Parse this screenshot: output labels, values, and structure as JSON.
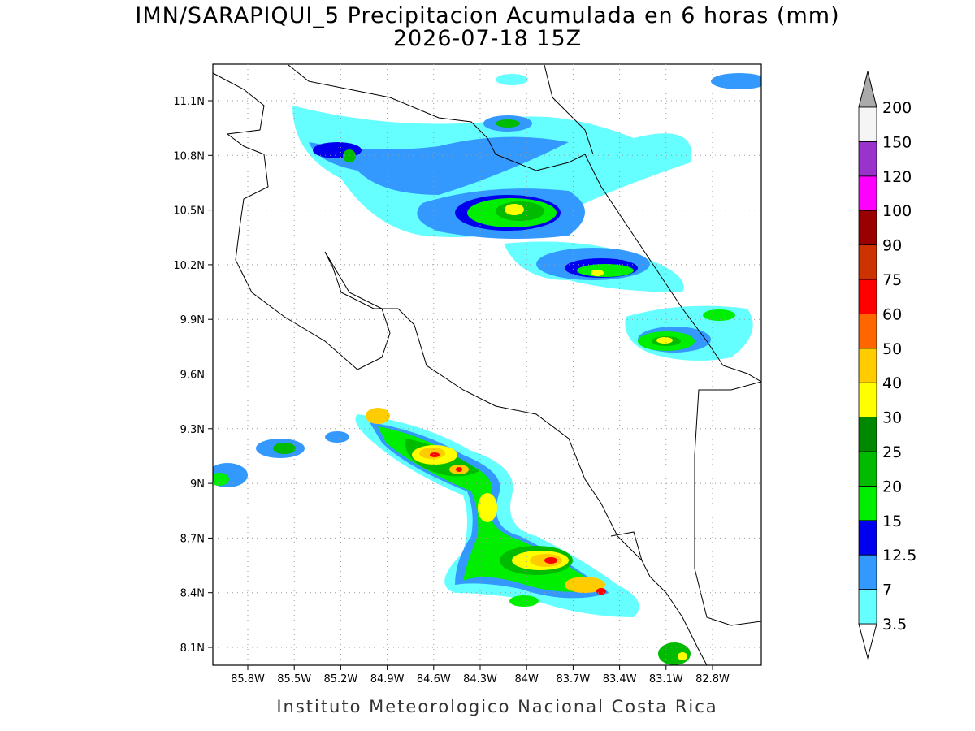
{
  "title": "IMN/SARAPIQUI_5 Precipitacion Acumulada en 6 horas (mm)",
  "subtitle": "2026-07-18 15Z",
  "footer": "Instituto Meteorologico Nacional Costa Rica",
  "x_ticks": [
    "85.8W",
    "85.5W",
    "85.2W",
    "84.9W",
    "84.6W",
    "84.3W",
    "84W",
    "83.7W",
    "83.4W",
    "83.1W",
    "82.8W"
  ],
  "y_ticks": [
    "11.1N",
    "10.8N",
    "10.5N",
    "10.2N",
    "9.9N",
    "9.6N",
    "9.3N",
    "9N",
    "8.7N",
    "8.4N",
    "8.1N"
  ],
  "colorbar": {
    "levels": [
      3.5,
      7,
      12.5,
      15,
      20,
      25,
      30,
      40,
      50,
      60,
      75,
      90,
      100,
      120,
      150,
      200
    ],
    "colors": [
      "#66ffff",
      "#3399ff",
      "#0000ee",
      "#00ee00",
      "#00bb00",
      "#008800",
      "#ffff00",
      "#ffcc00",
      "#ff6600",
      "#ff0000",
      "#cc3300",
      "#990000",
      "#ff00ff",
      "#9933cc",
      "#f5f5f5"
    ],
    "under_color": "#ffffff",
    "over_color": "#aaaaaa"
  }
}
